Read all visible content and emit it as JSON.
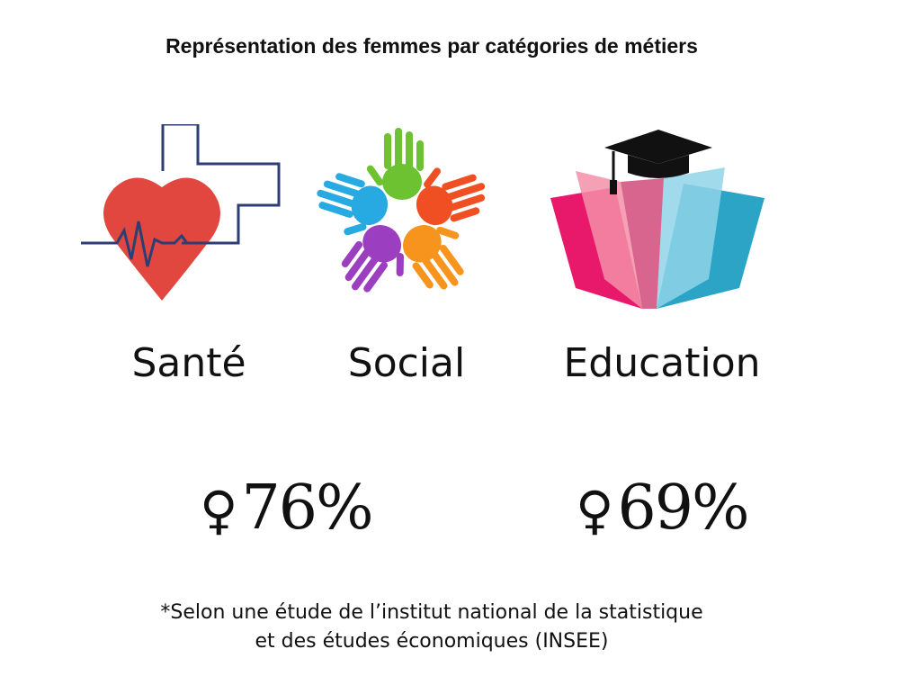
{
  "title": "Représentation des femmes par catégories de métiers",
  "categories": [
    {
      "label": "Santé",
      "icon": "heart-cross-icon"
    },
    {
      "label": "Social",
      "icon": "colored-hands-icon"
    },
    {
      "label": "Education",
      "icon": "book-graduation-cap-icon"
    }
  ],
  "stats": [
    {
      "symbol": "♀",
      "value": "76%"
    },
    {
      "symbol": "♀",
      "value": "69%"
    }
  ],
  "footnote": {
    "line1": "*Selon une étude de l’institut national  de la statistique",
    "line2": "et des études économiques (INSEE)"
  },
  "colors": {
    "heart": "#e2473f",
    "cross_outline": "#2c3e73",
    "hands": [
      "#6cc230",
      "#f04e23",
      "#f7941d",
      "#9b3fc0",
      "#27a9e1"
    ],
    "book_left": "#e8196a",
    "book_right": "#2ba4c6",
    "cap": "#111111"
  }
}
